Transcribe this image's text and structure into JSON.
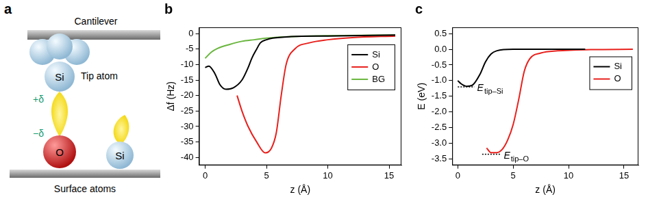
{
  "diagram": {
    "panel": "a",
    "cantilever": "Cantilever",
    "tip_atom": {
      "label": "Si",
      "caption": "Tip atom"
    },
    "charges": [
      "+δ",
      "−δ"
    ],
    "surface_atoms": [
      {
        "label": "O"
      },
      {
        "label": "Si"
      }
    ],
    "surface": "Surface atoms"
  },
  "chart_data": [
    {
      "type": "line",
      "title": "b",
      "x_label": "z (Å)",
      "y_label": "Δf (Hz)",
      "xlim": [
        -0.5,
        16
      ],
      "ylim": [
        -42.5,
        2
      ],
      "xticks": [
        0,
        5,
        10,
        15
      ],
      "yticks": [
        -40,
        -35,
        -30,
        -25,
        -20,
        -15,
        -10,
        -5,
        0
      ],
      "grid": false,
      "legend": "upper right",
      "series": [
        {
          "name": "Si",
          "color": "#000000",
          "x": [
            0,
            0.3,
            0.8,
            1.2,
            1.7,
            2.3,
            3,
            3.5,
            3.8,
            4.2,
            4.5,
            5,
            5.5,
            7,
            10,
            15.5
          ],
          "values": [
            -11,
            -10.5,
            -13,
            -16.5,
            -18,
            -17.5,
            -15,
            -11,
            -8,
            -5,
            -3,
            -2,
            -1.5,
            -1,
            -0.8,
            -0.5
          ]
        },
        {
          "name": "O",
          "color": "#e8201c",
          "x": [
            2.6,
            3,
            3.5,
            4.2,
            4.9,
            5.4,
            5.8,
            6.2,
            6.6,
            7.3,
            8.5,
            10,
            12,
            15.5
          ],
          "values": [
            -20,
            -25,
            -30,
            -35,
            -38.5,
            -37,
            -32,
            -20,
            -10,
            -5,
            -3,
            -2,
            -1.3,
            -0.8
          ]
        },
        {
          "name": "BG",
          "color": "#6ab63f",
          "x": [
            0,
            0.5,
            1,
            2,
            3,
            4,
            5,
            7,
            10,
            15.5
          ],
          "values": [
            -8,
            -6,
            -4.8,
            -3.5,
            -2.5,
            -2,
            -1.5,
            -1,
            -0.7,
            -0.5
          ]
        }
      ]
    },
    {
      "type": "line",
      "title": "c",
      "x_label": "z (Å)",
      "y_label": "E (eV)",
      "xlim": [
        -0.5,
        16.3
      ],
      "ylim": [
        -3.7,
        0.7
      ],
      "xticks": [
        0,
        5,
        10,
        15
      ],
      "yticks": [
        -3.5,
        {
          "value": -3,
          "label": "-3.0"
        },
        -2.5,
        {
          "value": -2,
          "label": "-2.0"
        },
        -1.5,
        {
          "value": -1,
          "label": "-1.0"
        },
        -0.5,
        {
          "value": 0,
          "label": "0.0"
        },
        0.5
      ],
      "grid": false,
      "legend": "upper right",
      "series": [
        {
          "name": "Si",
          "color": "#000000",
          "x": [
            0,
            0.3,
            0.8,
            1.3,
            2,
            2.5,
            3,
            3.5,
            5,
            11.5
          ],
          "values": [
            -1,
            -1.1,
            -1.18,
            -1.15,
            -0.8,
            -0.4,
            -0.15,
            -0.05,
            0,
            0
          ]
        },
        {
          "name": "O",
          "color": "#e8201c",
          "x": [
            2.6,
            3,
            3.5,
            4,
            4.5,
            5,
            5.5,
            6,
            6.5,
            7.5,
            9,
            12,
            15.8
          ],
          "values": [
            -3.15,
            -3.3,
            -3.3,
            -3.2,
            -2.9,
            -2.4,
            -1.6,
            -0.7,
            -0.3,
            -0.12,
            -0.05,
            -0.01,
            0
          ]
        }
      ],
      "annotations": [
        {
          "text": "E",
          "subscript": "tip–Si",
          "y": -1.2,
          "x": [
            0,
            1.5
          ]
        },
        {
          "text": "E",
          "subscript": "tip–O",
          "y": -3.35,
          "x": [
            2.2,
            3.9
          ]
        }
      ]
    }
  ]
}
